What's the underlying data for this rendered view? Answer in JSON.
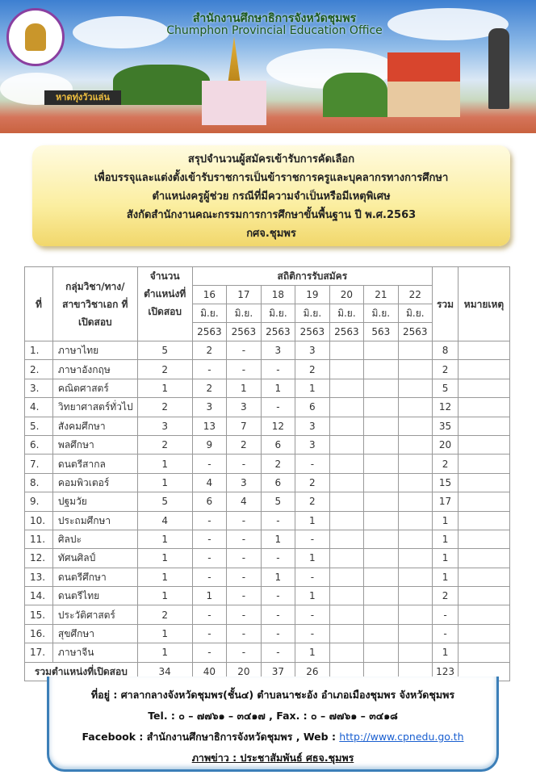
{
  "banner": {
    "office_name_th": "สำนักงานศึกษาธิการจังหวัดชุมพร",
    "office_name_en": "Chumphon Provincial Education Office",
    "sign_text": "หาดทุ่งวัวแล่น",
    "logo_text": "สำนักงานศึกษาธิการจังหวัดชุมพร Chumphon Provincial Education Office"
  },
  "title_lines": [
    "สรุปจำนวนผู้สมัครเข้ารับการคัดเลือก",
    "เพื่อบรรจุและแต่งตั้งเข้ารับราชการเป็นข้าราชการครูและบุคลากรทางการศึกษา",
    "ตำแหน่งครูผู้ช่วย กรณีที่มีความจำเป็นหรือมีเหตุพิเศษ",
    "สังกัดสำนักงานคณะกรรมการการศึกษาขั้นพื้นฐาน  ปี พ.ศ.2563",
    "กศจ.ชุมพร"
  ],
  "table": {
    "headers": {
      "no": "ที่",
      "subject": "กลุ่มวิชา/ทาง/ สาขาวิชาเอก ที่เปิดสอบ",
      "positions": "จำนวน ตำแหน่งที่ เปิดสอบ",
      "stats": "สถิติการรับสมัคร",
      "total": "รวม",
      "remark": "หมายเหตุ",
      "dates": [
        {
          "day": "16",
          "month": "มิ.ย.",
          "year": "2563"
        },
        {
          "day": "17",
          "month": "มิ.ย.",
          "year": "2563"
        },
        {
          "day": "18",
          "month": "มิ.ย.",
          "year": "2563"
        },
        {
          "day": "19",
          "month": "มิ.ย.",
          "year": "2563"
        },
        {
          "day": "20",
          "month": "มิ.ย.",
          "year": "2563"
        },
        {
          "day": "21",
          "month": "มิ.ย.",
          "year": "563"
        },
        {
          "day": "22",
          "month": "มิ.ย.",
          "year": "2563"
        }
      ]
    },
    "rows": [
      {
        "no": "1.",
        "subject": "ภาษาไทย",
        "positions": "5",
        "d": [
          "2",
          "-",
          "3",
          "3",
          "",
          "",
          ""
        ],
        "total": "8",
        "remark": ""
      },
      {
        "no": "2.",
        "subject": "ภาษาอังกฤษ",
        "positions": "2",
        "d": [
          "-",
          "-",
          "-",
          "2",
          "",
          "",
          ""
        ],
        "total": "2",
        "remark": ""
      },
      {
        "no": "3.",
        "subject": "คณิตศาสตร์",
        "positions": "1",
        "d": [
          "2",
          "1",
          "1",
          "1",
          "",
          "",
          ""
        ],
        "total": "5",
        "remark": ""
      },
      {
        "no": "4.",
        "subject": "วิทยาศาสตร์ทั่วไป",
        "positions": "2",
        "d": [
          "3",
          "3",
          "-",
          "6",
          "",
          "",
          ""
        ],
        "total": "12",
        "remark": ""
      },
      {
        "no": "5.",
        "subject": "สังคมศึกษา",
        "positions": "3",
        "d": [
          "13",
          "7",
          "12",
          "3",
          "",
          "",
          ""
        ],
        "total": "35",
        "remark": ""
      },
      {
        "no": "6.",
        "subject": "พลศึกษา",
        "positions": "2",
        "d": [
          "9",
          "2",
          "6",
          "3",
          "",
          "",
          ""
        ],
        "total": "20",
        "remark": ""
      },
      {
        "no": "7.",
        "subject": "ดนตรีสากล",
        "positions": "1",
        "d": [
          "-",
          "-",
          "2",
          "-",
          "",
          "",
          ""
        ],
        "total": "2",
        "remark": ""
      },
      {
        "no": "8.",
        "subject": "คอมพิวเตอร์",
        "positions": "1",
        "d": [
          "4",
          "3",
          "6",
          "2",
          "",
          "",
          ""
        ],
        "total": "15",
        "remark": ""
      },
      {
        "no": "9.",
        "subject": "ปฐมวัย",
        "positions": "5",
        "d": [
          "6",
          "4",
          "5",
          "2",
          "",
          "",
          ""
        ],
        "total": "17",
        "remark": ""
      },
      {
        "no": "10.",
        "subject": "ประถมศึกษา",
        "positions": "4",
        "d": [
          "-",
          "-",
          "-",
          "1",
          "",
          "",
          ""
        ],
        "total": "1",
        "remark": ""
      },
      {
        "no": "11.",
        "subject": "ศิลปะ",
        "positions": "1",
        "d": [
          "-",
          "-",
          "1",
          "-",
          "",
          "",
          ""
        ],
        "total": "1",
        "remark": ""
      },
      {
        "no": "12.",
        "subject": "ทัศนศิลป์",
        "positions": "1",
        "d": [
          "-",
          "-",
          "-",
          "1",
          "",
          "",
          ""
        ],
        "total": "1",
        "remark": ""
      },
      {
        "no": "13.",
        "subject": "ดนตรีศึกษา",
        "positions": "1",
        "d": [
          "-",
          "-",
          "1",
          "-",
          "",
          "",
          ""
        ],
        "total": "1",
        "remark": ""
      },
      {
        "no": "14.",
        "subject": "ดนตรีไทย",
        "positions": "1",
        "d": [
          "1",
          "-",
          "-",
          "1",
          "",
          "",
          ""
        ],
        "total": "2",
        "remark": ""
      },
      {
        "no": "15.",
        "subject": "ประวัติศาสตร์",
        "positions": "2",
        "d": [
          "-",
          "-",
          "-",
          "-",
          "",
          "",
          ""
        ],
        "total": "-",
        "remark": ""
      },
      {
        "no": "16.",
        "subject": "สุขศึกษา",
        "positions": "1",
        "d": [
          "-",
          "-",
          "-",
          "-",
          "",
          "",
          ""
        ],
        "total": "-",
        "remark": ""
      },
      {
        "no": "17.",
        "subject": "ภาษาจีน",
        "positions": "1",
        "d": [
          "-",
          "-",
          "-",
          "1",
          "",
          "",
          ""
        ],
        "total": "1",
        "remark": ""
      }
    ],
    "totals": {
      "label": "รวมตำแหน่งที่เปิดสอบ",
      "positions": "34",
      "d": [
        "40",
        "20",
        "37",
        "26",
        "",
        "",
        ""
      ],
      "total": "123",
      "remark": ""
    }
  },
  "footer": {
    "address": "ที่อยู่ : ศาลากลางจังหวัดชุมพร(ชั้น๔)   ตำบลนาชะอัง อำเภอเมืองชุมพร จังหวัดชุมพร",
    "phone": "Tel. : ๐ – ๗๗๖๑ – ๓๔๑๗ , Fax. : ๐ – ๗๗๖๑ – ๓๔๑๘",
    "facebook": "Facebook : สำนักงานศึกษาธิการจังหวัดชุมพร  ,   Web : ",
    "web_url": "http://www.cpnedu.go.th",
    "credit": "ภาพข่าว : ประชาสัมพันธ์ ศธจ.ชุมพร"
  },
  "colors": {
    "title_box": "#fbeea0",
    "footer_border": "#3c7fb8",
    "link": "#1a5fd0"
  }
}
